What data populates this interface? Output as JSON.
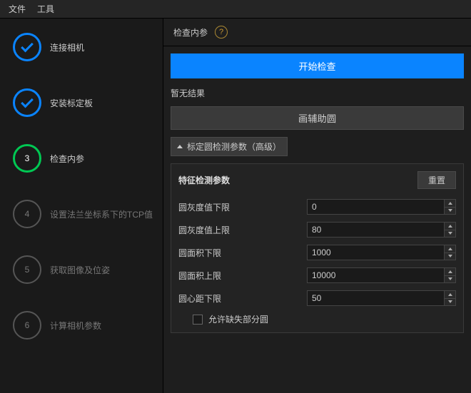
{
  "menu": {
    "file": "文件",
    "tools": "工具"
  },
  "steps": [
    {
      "label": "连接相机",
      "state": "done"
    },
    {
      "label": "安装标定板",
      "state": "done"
    },
    {
      "num": "3",
      "label": "检查内参",
      "state": "active"
    },
    {
      "num": "4",
      "label": "设置法兰坐标系下的TCP值",
      "state": "pending"
    },
    {
      "num": "5",
      "label": "获取图像及位姿",
      "state": "pending"
    },
    {
      "num": "6",
      "label": "计算相机参数",
      "state": "pending"
    }
  ],
  "header": {
    "title": "检查内参",
    "help": "?"
  },
  "btn_start": "开始检查",
  "result_text": "暂无结果",
  "btn_aux": "画辅助圆",
  "expander": "标定圆检测参数（高级）",
  "section_title": "特征检测参数",
  "btn_reset": "重置",
  "params": {
    "gray_lower": {
      "label": "圆灰度值下限",
      "value": "0"
    },
    "gray_upper": {
      "label": "圆灰度值上限",
      "value": "80"
    },
    "area_lower": {
      "label": "圆面积下限",
      "value": "1000"
    },
    "area_upper": {
      "label": "圆面积上限",
      "value": "10000"
    },
    "dist_lower": {
      "label": "圆心距下限",
      "value": "50"
    }
  },
  "checkbox_label": "允许缺失部分圆",
  "colors": {
    "primary": "#0a84ff",
    "active": "#00c853",
    "bg": "#1a1a1a",
    "panel": "#232323"
  }
}
